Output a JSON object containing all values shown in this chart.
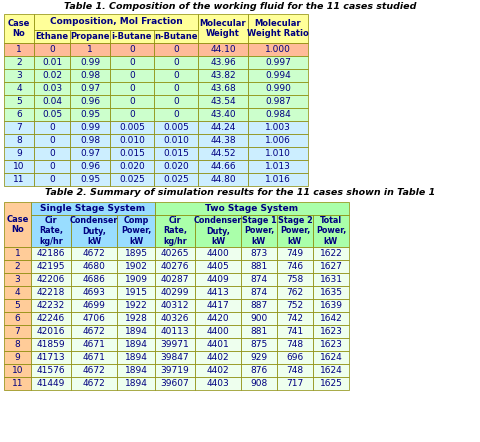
{
  "table1_title": "Table 1. Composition of the working fluid for the 11 cases studied",
  "table2_title": "Table 2. Summary of simulation results for the 11 cases shown in Table 1",
  "t1_data": [
    [
      "1",
      "0",
      "1",
      "0",
      "0",
      "44.10",
      "1.000"
    ],
    [
      "2",
      "0.01",
      "0.99",
      "0",
      "0",
      "43.96",
      "0.997"
    ],
    [
      "3",
      "0.02",
      "0.98",
      "0",
      "0",
      "43.82",
      "0.994"
    ],
    [
      "4",
      "0.03",
      "0.97",
      "0",
      "0",
      "43.68",
      "0.990"
    ],
    [
      "5",
      "0.04",
      "0.96",
      "0",
      "0",
      "43.54",
      "0.987"
    ],
    [
      "6",
      "0.05",
      "0.95",
      "0",
      "0",
      "43.40",
      "0.984"
    ],
    [
      "7",
      "0",
      "0.99",
      "0.005",
      "0.005",
      "44.24",
      "1.003"
    ],
    [
      "8",
      "0",
      "0.98",
      "0.010",
      "0.010",
      "44.38",
      "1.006"
    ],
    [
      "9",
      "0",
      "0.97",
      "0.015",
      "0.015",
      "44.52",
      "1.010"
    ],
    [
      "10",
      "0",
      "0.96",
      "0.020",
      "0.020",
      "44.66",
      "1.013"
    ],
    [
      "11",
      "0",
      "0.95",
      "0.025",
      "0.025",
      "44.80",
      "1.016"
    ]
  ],
  "t1_row1_color": "#FFBB99",
  "t1_rows_top_color": "#CCFFCC",
  "t1_rows_bot_color": "#CCEEFF",
  "t1_header_yellow": "#FFFF99",
  "t1_header_tan": "#F5DEB3",
  "t1_border_color": "#888800",
  "t2_data": [
    [
      "1",
      "42186",
      "4672",
      "1895",
      "40265",
      "4400",
      "873",
      "749",
      "1622"
    ],
    [
      "2",
      "42195",
      "4680",
      "1902",
      "40276",
      "4405",
      "881",
      "746",
      "1627"
    ],
    [
      "3",
      "42206",
      "4686",
      "1909",
      "40287",
      "4409",
      "874",
      "758",
      "1631"
    ],
    [
      "4",
      "42218",
      "4693",
      "1915",
      "40299",
      "4413",
      "874",
      "762",
      "1635"
    ],
    [
      "5",
      "42232",
      "4699",
      "1922",
      "40312",
      "4417",
      "887",
      "752",
      "1639"
    ],
    [
      "6",
      "42246",
      "4706",
      "1928",
      "40326",
      "4420",
      "900",
      "742",
      "1642"
    ],
    [
      "7",
      "42016",
      "4672",
      "1894",
      "40113",
      "4400",
      "881",
      "741",
      "1623"
    ],
    [
      "8",
      "41859",
      "4671",
      "1894",
      "39971",
      "4401",
      "875",
      "748",
      "1623"
    ],
    [
      "9",
      "41713",
      "4671",
      "1894",
      "39847",
      "4402",
      "929",
      "696",
      "1624"
    ],
    [
      "10",
      "41576",
      "4672",
      "1894",
      "39719",
      "4402",
      "876",
      "748",
      "1624"
    ],
    [
      "11",
      "41449",
      "4672",
      "1894",
      "39607",
      "4403",
      "908",
      "717",
      "1625"
    ]
  ],
  "t2_case_color": "#FFCC99",
  "t2_single_header": "#99DDFF",
  "t2_two_header": "#AAFFAA",
  "t2_row_color": "#EEFFEE",
  "t2_border_color": "#888800",
  "bg_color": "#FFFFFF",
  "title_color": "#000000",
  "text_color": "#000080",
  "border_color": "#888800"
}
